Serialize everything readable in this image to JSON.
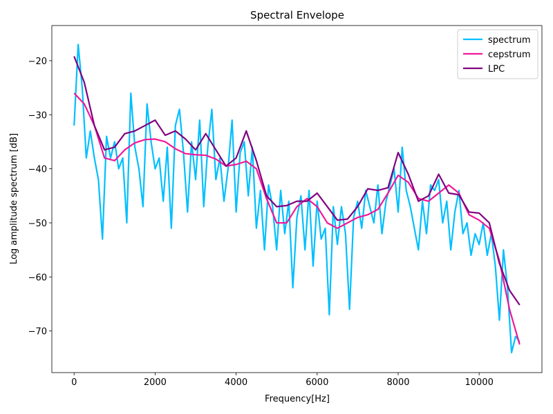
{
  "chart_data": {
    "type": "line",
    "title": "Spectral Envelope",
    "xlabel": "Frequency[Hz]",
    "ylabel": "Log amplitude spectrum [dB]",
    "xlim": [
      -550,
      11550
    ],
    "ylim": [
      -77.7,
      -13.5
    ],
    "xticks": [
      0,
      2000,
      4000,
      6000,
      8000,
      10000
    ],
    "yticks": [
      {
        "value": -70,
        "label": "−70"
      },
      {
        "value": -60,
        "label": "−60"
      },
      {
        "value": -50,
        "label": "−50"
      },
      {
        "value": -40,
        "label": "−40"
      },
      {
        "value": -30,
        "label": "−30"
      },
      {
        "value": -20,
        "label": "−20"
      }
    ],
    "legend": "upper right",
    "series": [
      {
        "name": "spectrum",
        "color": "#00bfff",
        "x": [
          0,
          100,
          200,
          300,
          400,
          500,
          600,
          700,
          800,
          900,
          1000,
          1100,
          1200,
          1300,
          1400,
          1500,
          1600,
          1700,
          1800,
          1900,
          2000,
          2100,
          2200,
          2300,
          2400,
          2500,
          2600,
          2700,
          2800,
          2900,
          3000,
          3100,
          3200,
          3300,
          3400,
          3500,
          3600,
          3700,
          3800,
          3900,
          4000,
          4100,
          4200,
          4300,
          4400,
          4500,
          4600,
          4700,
          4800,
          4900,
          5000,
          5100,
          5200,
          5300,
          5400,
          5500,
          5600,
          5700,
          5800,
          5900,
          6000,
          6100,
          6200,
          6300,
          6400,
          6500,
          6600,
          6700,
          6800,
          6900,
          7000,
          7100,
          7200,
          7300,
          7400,
          7500,
          7600,
          7700,
          7800,
          7900,
          8000,
          8100,
          8200,
          8300,
          8400,
          8500,
          8600,
          8700,
          8800,
          8900,
          9000,
          9100,
          9200,
          9300,
          9400,
          9500,
          9600,
          9700,
          9800,
          9900,
          10000,
          10100,
          10200,
          10300,
          10400,
          10500,
          10600,
          10700,
          10800,
          10900,
          11000
        ],
        "values": [
          -32,
          -17,
          -25,
          -38,
          -33,
          -38,
          -42,
          -53,
          -34,
          -38,
          -35,
          -40,
          -38,
          -50,
          -26,
          -36,
          -40,
          -47,
          -28,
          -35,
          -40,
          -38,
          -46,
          -36,
          -51,
          -32,
          -29,
          -37,
          -48,
          -35,
          -42,
          -31,
          -47,
          -36,
          -29,
          -42,
          -38,
          -46,
          -40,
          -31,
          -48,
          -37,
          -35,
          -45,
          -36,
          -51,
          -44,
          -55,
          -43,
          -47,
          -55,
          -44,
          -52,
          -46,
          -62,
          -49,
          -45,
          -55,
          -44,
          -58,
          -46,
          -53,
          -51,
          -67,
          -47,
          -54,
          -47,
          -52,
          -66,
          -49,
          -46,
          -51,
          -44,
          -47,
          -50,
          -43,
          -52,
          -46,
          -43,
          -40,
          -48,
          -36,
          -44,
          -47,
          -51,
          -55,
          -46,
          -52,
          -43,
          -44,
          -42,
          -50,
          -46,
          -55,
          -48,
          -44,
          -52,
          -50,
          -56,
          -52,
          -54,
          -50,
          -56,
          -52,
          -58,
          -68,
          -55,
          -62,
          -74,
          -71,
          -72
        ]
      },
      {
        "name": "cepstrum",
        "color": "#f0189a",
        "x": [
          0,
          250,
          500,
          750,
          1000,
          1250,
          1500,
          1750,
          2000,
          2250,
          2500,
          2750,
          3000,
          3250,
          3500,
          3750,
          4000,
          4250,
          4500,
          4750,
          5000,
          5250,
          5500,
          5750,
          6000,
          6250,
          6500,
          6750,
          7000,
          7250,
          7500,
          7750,
          8000,
          8250,
          8500,
          8750,
          9000,
          9250,
          9500,
          9750,
          10000,
          10250,
          10500,
          10750,
          11000
        ],
        "values": [
          -26,
          -28,
          -32,
          -38,
          -38.5,
          -36.5,
          -35.2,
          -34.6,
          -34.5,
          -35,
          -36.3,
          -37.2,
          -37.4,
          -37.5,
          -38.2,
          -39.5,
          -39.2,
          -38.6,
          -40,
          -45.5,
          -50,
          -50,
          -47,
          -45.5,
          -47,
          -50,
          -51,
          -50,
          -49,
          -48.5,
          -47.5,
          -44.5,
          -41.2,
          -42.5,
          -45.5,
          -46,
          -44.5,
          -43,
          -44.5,
          -48.5,
          -49.5,
          -51,
          -57,
          -66,
          -72.5
        ]
      },
      {
        "name": "LPC",
        "color": "#800080",
        "x": [
          0,
          250,
          500,
          750,
          1000,
          1250,
          1500,
          1750,
          2000,
          2250,
          2500,
          2750,
          3000,
          3250,
          3500,
          3750,
          4000,
          4250,
          4500,
          4750,
          5000,
          5250,
          5500,
          5750,
          6000,
          6250,
          6500,
          6750,
          7000,
          7250,
          7500,
          7750,
          8000,
          8250,
          8500,
          8750,
          9000,
          9250,
          9500,
          9750,
          10000,
          10250,
          10500,
          10750,
          11000
        ],
        "values": [
          -19.2,
          -24,
          -32,
          -36.5,
          -36,
          -33.5,
          -33,
          -32,
          -31,
          -33.8,
          -33,
          -34.5,
          -36.5,
          -33.5,
          -36.5,
          -39.5,
          -38,
          -33,
          -38.5,
          -45,
          -47,
          -46.8,
          -46,
          -46,
          -44.5,
          -47,
          -49.5,
          -49.3,
          -47,
          -43.7,
          -44,
          -43.5,
          -37,
          -41,
          -46,
          -45,
          -41,
          -44.5,
          -44.8,
          -48,
          -48.2,
          -50,
          -57.5,
          -62.5,
          -65.2
        ]
      }
    ]
  }
}
